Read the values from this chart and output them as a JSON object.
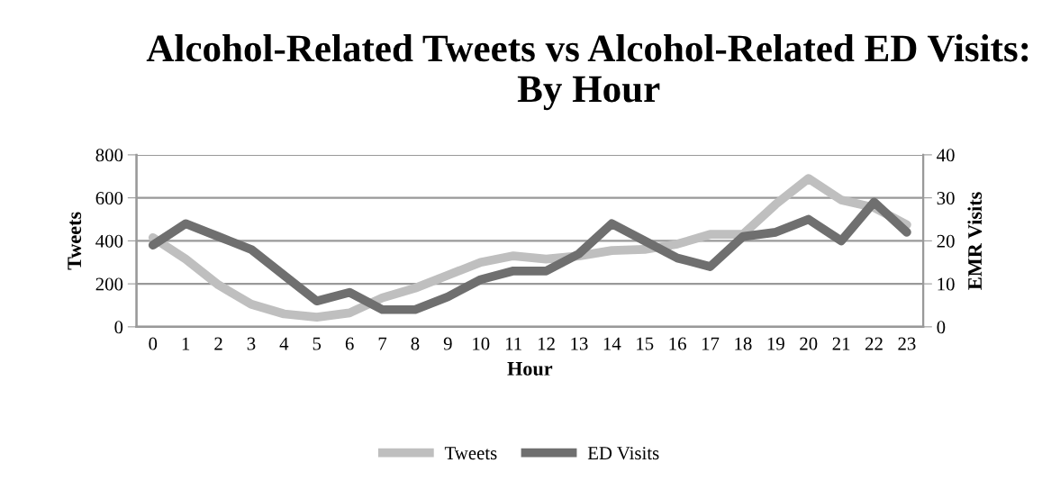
{
  "chart_data": {
    "type": "line",
    "title": "Alcohol-Related Tweets vs Alcohol-Related ED Visits: By Hour",
    "xlabel": "Hour",
    "ylabel": "Tweets",
    "y2label": "EMR Visits",
    "categories": [
      "0",
      "1",
      "2",
      "3",
      "4",
      "5",
      "6",
      "7",
      "8",
      "9",
      "10",
      "11",
      "12",
      "13",
      "14",
      "15",
      "16",
      "17",
      "18",
      "19",
      "20",
      "21",
      "22",
      "23"
    ],
    "series": [
      {
        "name": "Tweets",
        "color": "#bfbfbf",
        "values": [
          415,
          315,
          195,
          105,
          60,
          45,
          65,
          135,
          180,
          240,
          300,
          330,
          315,
          330,
          355,
          360,
          385,
          430,
          430,
          570,
          690,
          590,
          555,
          475
        ]
      },
      {
        "name": "ED Visits",
        "color": "#6f6f6f",
        "axis": "y2",
        "values": [
          19,
          24,
          21,
          18,
          12,
          6,
          8,
          4,
          4,
          7,
          11,
          13,
          13,
          17,
          24,
          20,
          16,
          14,
          21,
          22,
          25,
          20,
          29,
          22
        ]
      }
    ],
    "ylim": [
      0,
      800
    ],
    "yticks": [
      0,
      200,
      400,
      600,
      800
    ],
    "y2lim": [
      0,
      40
    ],
    "y2ticks": [
      0,
      10,
      20,
      30,
      40
    ],
    "grid": "y",
    "legend": "bottom",
    "marker": "none",
    "line_style": "solid"
  }
}
